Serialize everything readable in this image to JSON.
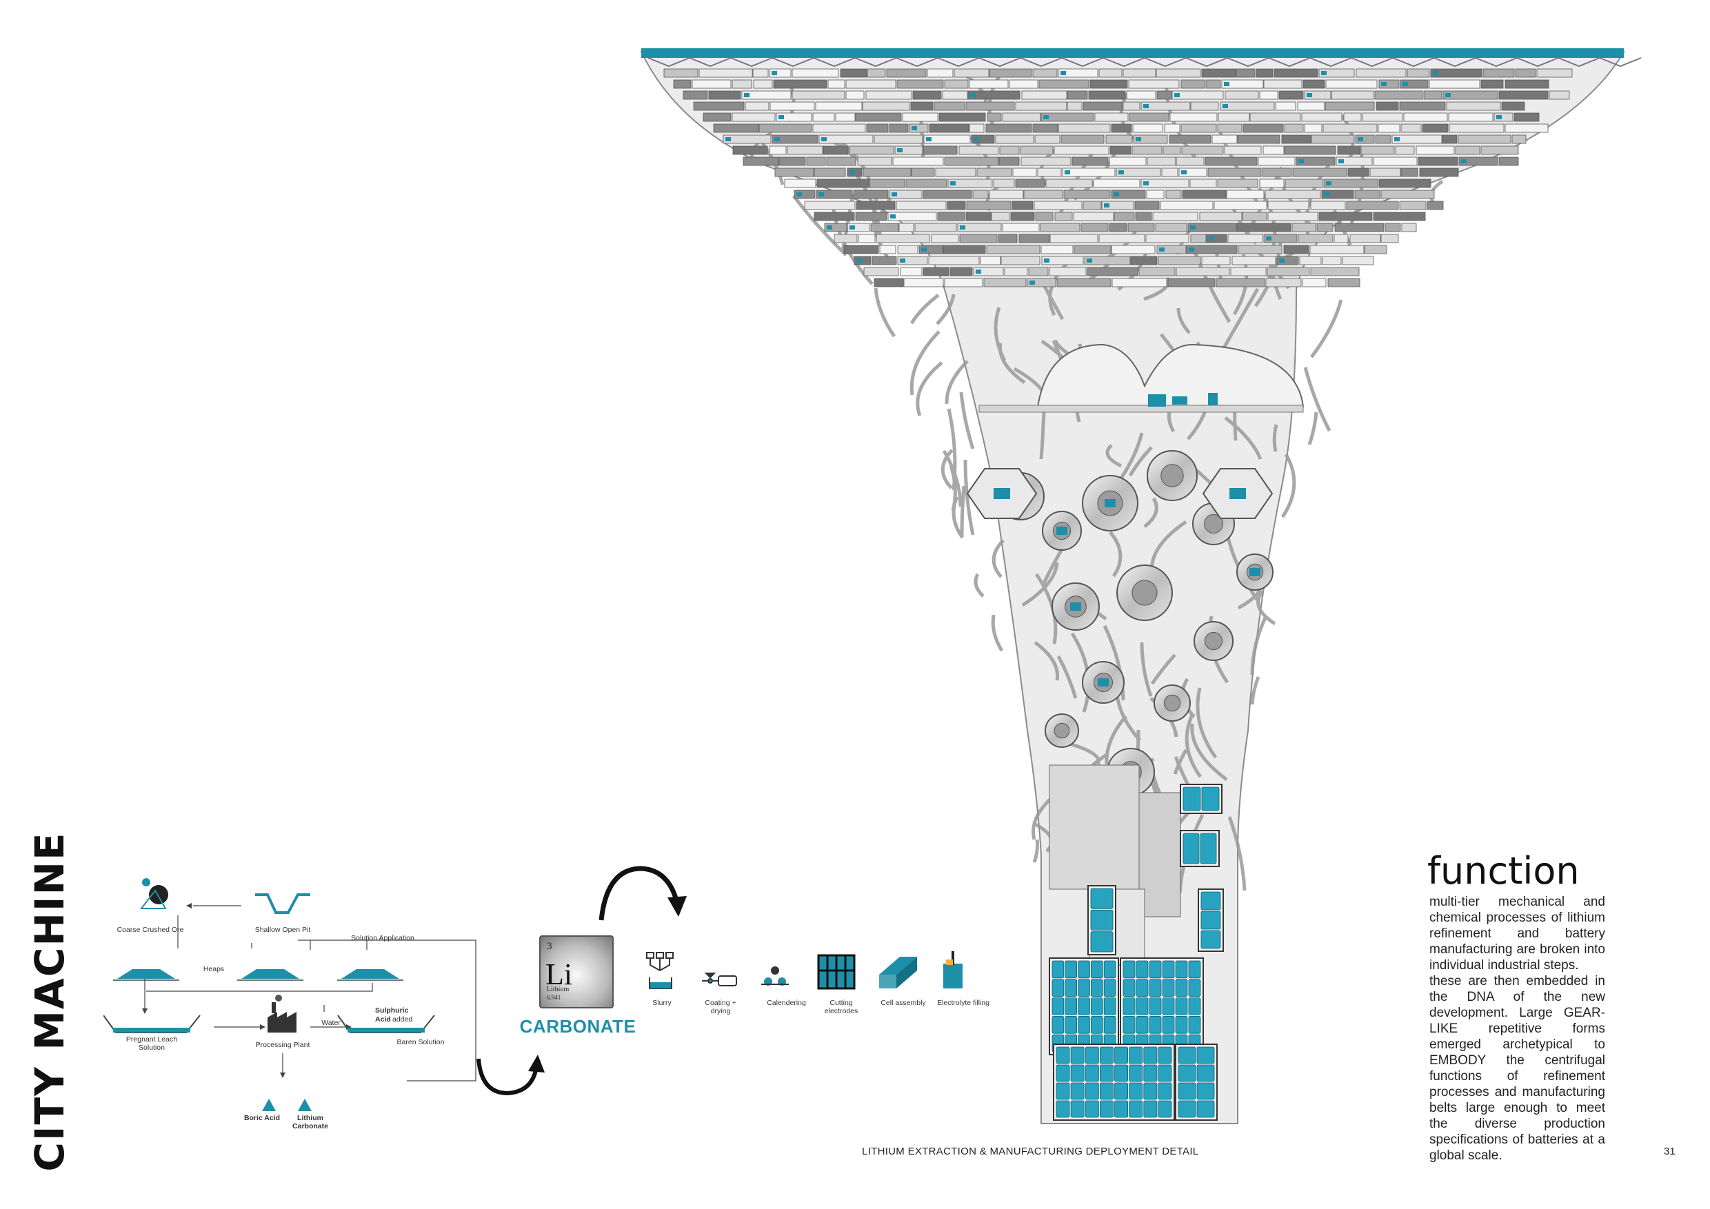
{
  "page": {
    "vertical_title": "CITY MACHINE",
    "footer": "LITHIUM EXTRACTION & MANUFACTURING DEPLOYMENT DETAIL",
    "page_number": "31"
  },
  "colors": {
    "accent": "#1e8fa8",
    "structure_light": "#e6e6e6",
    "structure_mid": "#bdbdbd",
    "structure_dark": "#6f6f6f",
    "ink": "#222222"
  },
  "extraction": {
    "coarse_ore": "Coarse Crushed Ore",
    "open_pit": "Shallow Open Pit",
    "solution_app": "Solution Application",
    "heaps": "Heaps",
    "pregnant": "Pregnant Leach Solution",
    "processing": "Processing Plant",
    "water": "Water",
    "sulphuric_a": "Sulphuric",
    "sulphuric_b": "Acid",
    "sulphuric_c": "added",
    "baren": "Baren Solution",
    "boric": "Boric Acid",
    "lithium_carbonate": "Lithium Carbonate"
  },
  "element": {
    "number": "3",
    "symbol": "Li",
    "name": "Lithium",
    "mass": "6.941",
    "label": "CARBONATE"
  },
  "manufacturing": {
    "steps": [
      "Slurry",
      "Coating + drying",
      "Calendering",
      "Cutting electrodes",
      "Cell assembly",
      "Electrolyte filling"
    ]
  },
  "function": {
    "title": "function",
    "paragraphs": [
      "multi-tier mechanical and chemical processes of lithium refinement and battery manufacturing are broken into individual industrial steps.",
      "these are then embedded in the DNA of the new development. Large GEAR-LIKE repetitive forms emerged archetypical to EMBODY the centrifugal functions of refinement processes and manufacturing belts large enough to meet the diverse production specifications of batteries at a global scale."
    ]
  }
}
